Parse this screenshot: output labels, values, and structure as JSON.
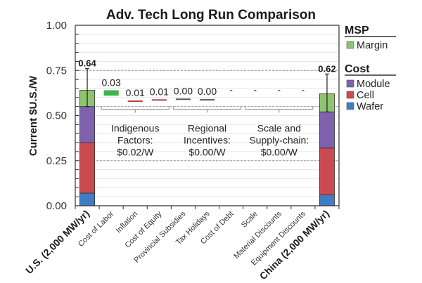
{
  "chart_data": {
    "type": "bar",
    "subtype": "stacked-waterfall",
    "title": "Adv. Tech Long Run Comparison",
    "ylabel": "Current $U.S./W",
    "xlabel": "",
    "ylim": [
      0,
      1.0
    ],
    "yticks": [
      "0.00",
      "0.25",
      "0.50",
      "0.75",
      "1.00"
    ],
    "ytick_values": [
      0,
      0.25,
      0.5,
      0.75,
      1.0
    ],
    "grid": true,
    "categories": [
      "U.S. (2,000 MW/yr)",
      "Cost of Labor",
      "Inflation",
      "Cost of Equity",
      "Provincial Subsidies",
      "Tax Holidays",
      "Cost of Debt",
      "Scale",
      "Material Discounts",
      "Equipment Discounts",
      "China (2,000 MW/yr)"
    ],
    "bold_categories": [
      "U.S. (2,000 MW/yr)",
      "China (2,000 MW/yr)"
    ],
    "stacked_bars": [
      {
        "category": "U.S. (2,000 MW/yr)",
        "total_label": "0.64",
        "wafer": 0.07,
        "cell": 0.28,
        "module": 0.2,
        "margin": 0.09,
        "error_high": 0.76,
        "error_low": 0.55
      },
      {
        "category": "China (2,000 MW/yr)",
        "total_label": "0.62",
        "wafer": 0.06,
        "cell": 0.26,
        "module": 0.2,
        "margin": 0.1,
        "error_high": 0.73,
        "error_low": 0.52
      }
    ],
    "waterfall_steps": [
      {
        "category": "Cost of Labor",
        "label": "0.03",
        "value": 0.03,
        "top": 0.64,
        "color": "#3bb54a"
      },
      {
        "category": "Inflation",
        "label": "0.01",
        "value": 0.005,
        "top": 0.583,
        "color": "#b03a3e"
      },
      {
        "category": "Cost of Equity",
        "label": "0.01",
        "value": 0.006,
        "top": 0.59,
        "color": "#b03a3e"
      },
      {
        "category": "Provincial Subsidies",
        "label": "0.00",
        "value": 0.002,
        "top": 0.594,
        "color": "#555555"
      },
      {
        "category": "Tax Holidays",
        "label": "0.00",
        "value": 0.002,
        "top": 0.591,
        "color": "#555555"
      },
      {
        "category": "Cost of Debt",
        "label": "-",
        "value": 0,
        "top": null,
        "color": null
      },
      {
        "category": "Scale",
        "label": "-",
        "value": 0,
        "top": null,
        "color": null
      },
      {
        "category": "Material Discounts",
        "label": "-",
        "value": 0,
        "top": null,
        "color": null
      },
      {
        "category": "Equipment Discounts",
        "label": "-",
        "value": 0,
        "top": null,
        "color": null
      }
    ],
    "groups": [
      {
        "lines": [
          "Indigenous",
          "Factors:",
          "$0.02/W"
        ],
        "from": "Cost of Labor",
        "to": "Cost of Equity"
      },
      {
        "lines": [
          "Regional",
          "Incentives:",
          "$0.00/W"
        ],
        "from": "Provincial Subsidies",
        "to": "Cost of Debt"
      },
      {
        "lines": [
          "Scale and",
          "Supply-chain:",
          "$0.00/W"
        ],
        "from": "Scale",
        "to": "Equipment Discounts"
      }
    ],
    "reference_lines": [
      0.75,
      0.55,
      0.25
    ],
    "legend": {
      "placement": "right",
      "sections": [
        {
          "heading": "MSP",
          "items": [
            {
              "name": "Margin",
              "color": "#8fc46f"
            }
          ]
        },
        {
          "heading": "Cost",
          "items": [
            {
              "name": "Module",
              "color": "#7e62ad"
            },
            {
              "name": "Cell",
              "color": "#c94b4f"
            },
            {
              "name": "Wafer",
              "color": "#3f7cc4"
            }
          ]
        }
      ]
    },
    "colors": {
      "margin": "#8fc46f",
      "module": "#7e62ad",
      "cell": "#c94b4f",
      "wafer": "#3f7cc4"
    }
  }
}
